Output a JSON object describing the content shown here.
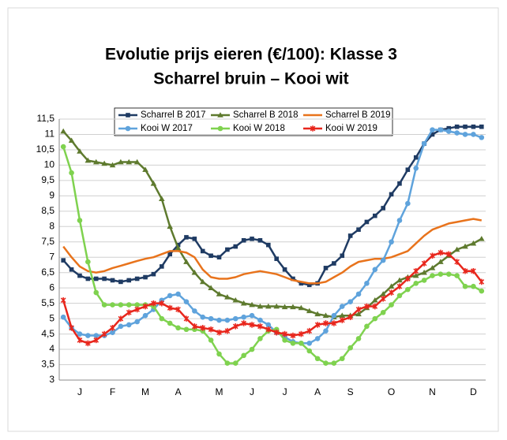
{
  "chart_data": {
    "type": "line",
    "title": "Evolutie prijs eieren (€/100): Klasse 3",
    "subtitle": "Scharrel bruin – Kooi wit",
    "categories": [
      null,
      null,
      "J",
      null,
      null,
      null,
      "F",
      null,
      null,
      null,
      "M",
      null,
      null,
      null,
      "A",
      null,
      null,
      null,
      null,
      "M",
      null,
      null,
      null,
      "J",
      null,
      null,
      null,
      "J",
      null,
      null,
      null,
      "A",
      null,
      null,
      null,
      "S",
      null,
      null,
      null,
      null,
      "O",
      null,
      null,
      null,
      null,
      "N",
      null,
      null,
      null,
      null,
      "D",
      null
    ],
    "ylim": [
      3,
      11.5
    ],
    "yticks": [
      3,
      {
        "value": 3.5,
        "label": "3,5"
      },
      4,
      {
        "value": 4.5,
        "label": "4,5"
      },
      5,
      {
        "value": 5.5,
        "label": "5,5"
      },
      6,
      {
        "value": 6.5,
        "label": "6,5"
      },
      7,
      {
        "value": 7.5,
        "label": "7,5"
      },
      8,
      {
        "value": 8.5,
        "label": "8,5"
      },
      9,
      {
        "value": 9.5,
        "label": "9,5"
      },
      10,
      {
        "value": 10.5,
        "label": "10,5"
      },
      11,
      {
        "value": 11.5,
        "label": "11,5"
      }
    ],
    "grid": true,
    "legend": "top",
    "series": [
      {
        "name": "Scharrel B 2017",
        "color": "#1f3b63",
        "marker": "square",
        "values": [
          6.9,
          6.6,
          6.4,
          6.3,
          6.3,
          6.3,
          6.25,
          6.2,
          6.25,
          6.3,
          6.35,
          6.45,
          6.7,
          7.1,
          7.4,
          7.65,
          7.6,
          7.2,
          7.05,
          7.0,
          7.25,
          7.35,
          7.55,
          7.6,
          7.55,
          7.4,
          6.95,
          6.6,
          6.3,
          6.15,
          6.1,
          6.15,
          6.65,
          6.8,
          7.05,
          7.7,
          7.9,
          8.15,
          8.35,
          8.6,
          9.05,
          9.4,
          9.85,
          10.25,
          10.7,
          11.0,
          11.15,
          11.2,
          11.25,
          11.25,
          11.25,
          11.25
        ]
      },
      {
        "name": "Scharrel B 2018",
        "color": "#5e7a2e",
        "marker": "triangle",
        "values": [
          11.1,
          10.8,
          10.45,
          10.15,
          10.1,
          10.05,
          10.0,
          10.1,
          10.1,
          10.1,
          9.85,
          9.4,
          8.9,
          8.0,
          7.3,
          6.85,
          6.5,
          6.2,
          6.0,
          5.8,
          5.7,
          5.6,
          5.5,
          5.45,
          5.4,
          5.4,
          5.4,
          5.38,
          5.38,
          5.35,
          5.25,
          5.15,
          5.1,
          5.05,
          5.1,
          5.1,
          5.15,
          5.35,
          5.6,
          5.8,
          6.05,
          6.25,
          6.35,
          6.4,
          6.5,
          6.65,
          6.85,
          7.05,
          7.25,
          7.35,
          7.45,
          7.6
        ]
      },
      {
        "name": "Scharrel B 2019",
        "color": "#e8731c",
        "marker": "none",
        "values": [
          7.35,
          7.0,
          6.7,
          6.55,
          6.5,
          6.55,
          6.65,
          6.72,
          6.8,
          6.88,
          6.95,
          7.0,
          7.1,
          7.2,
          7.2,
          7.15,
          7.0,
          6.6,
          6.35,
          6.3,
          6.3,
          6.35,
          6.45,
          6.5,
          6.55,
          6.5,
          6.45,
          6.35,
          6.25,
          6.2,
          6.15,
          6.15,
          6.2,
          6.35,
          6.5,
          6.7,
          6.85,
          6.9,
          6.95,
          6.95,
          7.0,
          7.1,
          7.2,
          7.45,
          7.7,
          7.9,
          8.0,
          8.1,
          8.15,
          8.2,
          8.25,
          8.2
        ]
      },
      {
        "name": "Kooi W 2017",
        "color": "#5fa3dc",
        "marker": "circle",
        "values": [
          5.05,
          4.7,
          4.5,
          4.45,
          4.45,
          4.45,
          4.55,
          4.75,
          4.8,
          4.9,
          5.1,
          5.3,
          5.6,
          5.75,
          5.8,
          5.55,
          5.25,
          5.05,
          5.0,
          4.95,
          4.95,
          5.0,
          5.05,
          5.1,
          4.95,
          4.8,
          4.55,
          4.4,
          4.25,
          4.2,
          4.2,
          4.35,
          4.6,
          5.1,
          5.4,
          5.55,
          5.8,
          6.15,
          6.6,
          6.9,
          7.5,
          8.2,
          8.75,
          9.9,
          10.7,
          11.15,
          11.15,
          11.1,
          11.05,
          11.0,
          11.0,
          10.9
        ]
      },
      {
        "name": "Kooi W 2018",
        "color": "#7fd24f",
        "marker": "circle",
        "values": [
          10.6,
          9.75,
          8.2,
          6.85,
          5.85,
          5.45,
          5.45,
          5.45,
          5.45,
          5.45,
          5.45,
          5.4,
          5.0,
          4.85,
          4.7,
          4.65,
          4.65,
          4.6,
          4.3,
          3.85,
          3.55,
          3.55,
          3.8,
          4.0,
          4.35,
          4.6,
          4.65,
          4.3,
          4.2,
          4.2,
          3.95,
          3.7,
          3.55,
          3.55,
          3.7,
          4.05,
          4.35,
          4.75,
          5.0,
          5.2,
          5.45,
          5.75,
          5.95,
          6.15,
          6.25,
          6.4,
          6.45,
          6.45,
          6.4,
          6.05,
          6.05,
          5.9
        ]
      },
      {
        "name": "Kooi W 2019",
        "color": "#e8261c",
        "marker": "cross",
        "values": [
          5.6,
          4.7,
          4.3,
          4.2,
          4.3,
          4.5,
          4.7,
          5.0,
          5.2,
          5.3,
          5.4,
          5.5,
          5.5,
          5.35,
          5.3,
          5.0,
          4.75,
          4.7,
          4.65,
          4.55,
          4.6,
          4.75,
          4.85,
          4.8,
          4.75,
          4.65,
          4.55,
          4.5,
          4.45,
          4.5,
          4.6,
          4.8,
          4.85,
          4.85,
          4.95,
          5.05,
          5.3,
          5.4,
          5.4,
          5.65,
          5.85,
          6.05,
          6.3,
          6.55,
          6.8,
          7.05,
          7.15,
          7.1,
          6.85,
          6.55,
          6.55,
          6.2
        ]
      }
    ]
  }
}
